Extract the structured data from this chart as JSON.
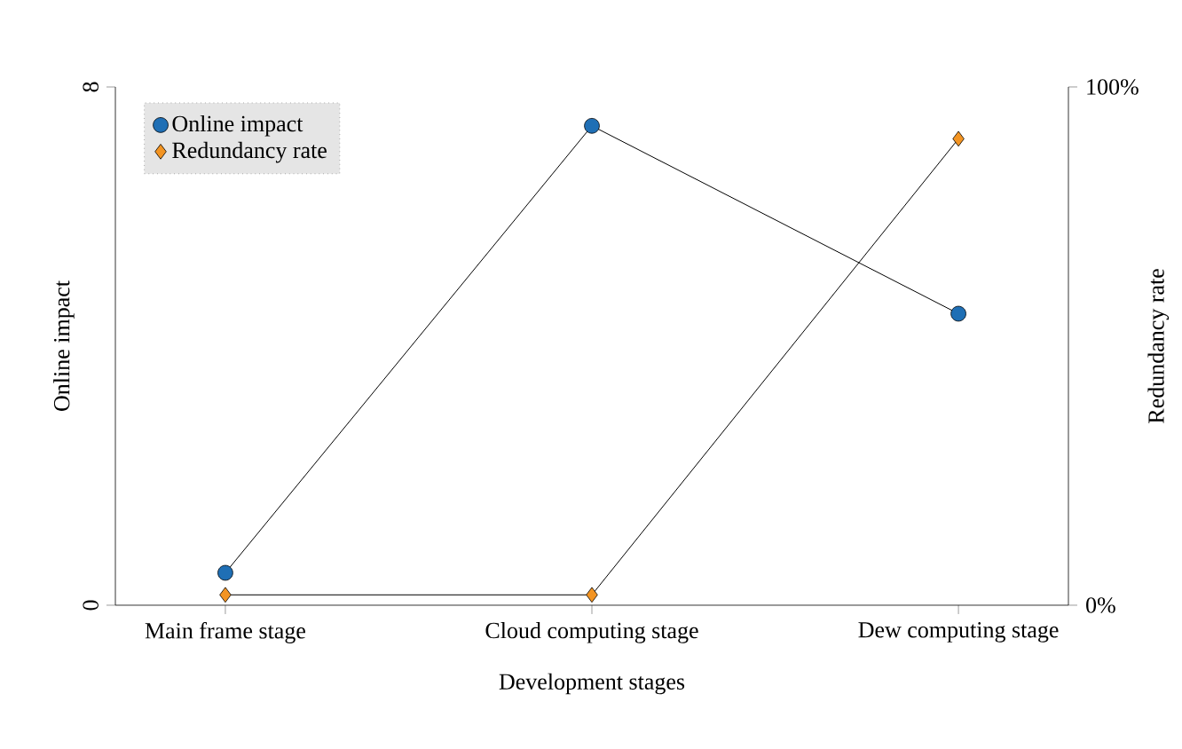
{
  "chart_data": {
    "type": "line",
    "categories": [
      "Main frame stage",
      "Cloud computing stage",
      "Dew computing stage"
    ],
    "xlabel": "Development stages",
    "ylabel": "Online impact",
    "y2label": "Redundancy rate",
    "series": [
      {
        "name": "Online impact",
        "color": "#1f6fb5",
        "values": [
          0.5,
          7.4,
          4.5
        ],
        "marker": "circle"
      },
      {
        "name": "Redundancy rate",
        "color": "#f39422",
        "values": [
          2,
          2,
          90
        ],
        "marker": "diamond",
        "axis": "y2"
      }
    ],
    "ylim": [
      0,
      8
    ],
    "yticks": [
      0,
      8
    ],
    "y2lim": [
      0,
      100
    ],
    "y2ticks": [
      {
        "value": 0,
        "label": "0%"
      },
      {
        "value": 100,
        "label": "100%"
      }
    ],
    "legend": "top left",
    "grid": false
  }
}
